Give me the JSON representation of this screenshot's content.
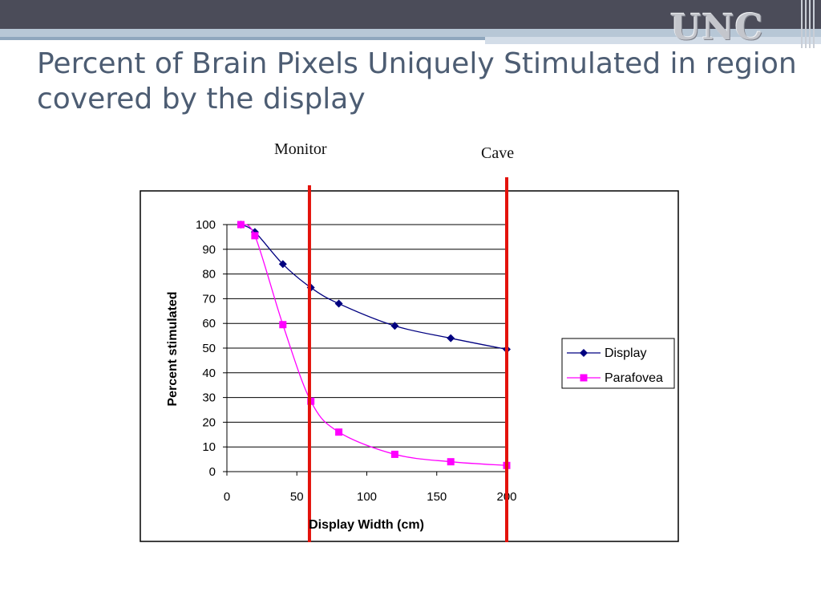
{
  "slide": {
    "title": "Percent of Brain Pixels Uniquely Stimulated in region covered by the display",
    "logo": "UNC",
    "colors": {
      "header": "#4b4c59",
      "title": "#4d5d73",
      "marker_line": "#e3120b"
    }
  },
  "markers": [
    {
      "label": "Monitor",
      "x": 59
    },
    {
      "label": "Cave",
      "x": 200
    }
  ],
  "chart_data": {
    "type": "line",
    "title": "",
    "xlabel": "Display Width (cm)",
    "ylabel": "Percent stimulated",
    "xlim": [
      0,
      200
    ],
    "ylim": [
      0,
      100
    ],
    "xticks": [
      0,
      50,
      100,
      150,
      200
    ],
    "yticks": [
      0,
      10,
      20,
      30,
      40,
      50,
      60,
      70,
      80,
      90,
      100
    ],
    "grid": "horizontal",
    "legend_position": "right",
    "series": [
      {
        "name": "Display",
        "color": "#000080",
        "marker": "diamond",
        "x": [
          10,
          20,
          40,
          60,
          80,
          120,
          160,
          200
        ],
        "y": [
          100,
          97,
          84,
          74.5,
          68,
          59,
          54,
          49.5
        ]
      },
      {
        "name": "Parafovea",
        "color": "#ff00ff",
        "marker": "square",
        "x": [
          10,
          20,
          40,
          60,
          80,
          120,
          160,
          200
        ],
        "y": [
          100,
          95.5,
          59.5,
          28.5,
          16,
          7,
          4,
          2.5
        ]
      }
    ]
  }
}
